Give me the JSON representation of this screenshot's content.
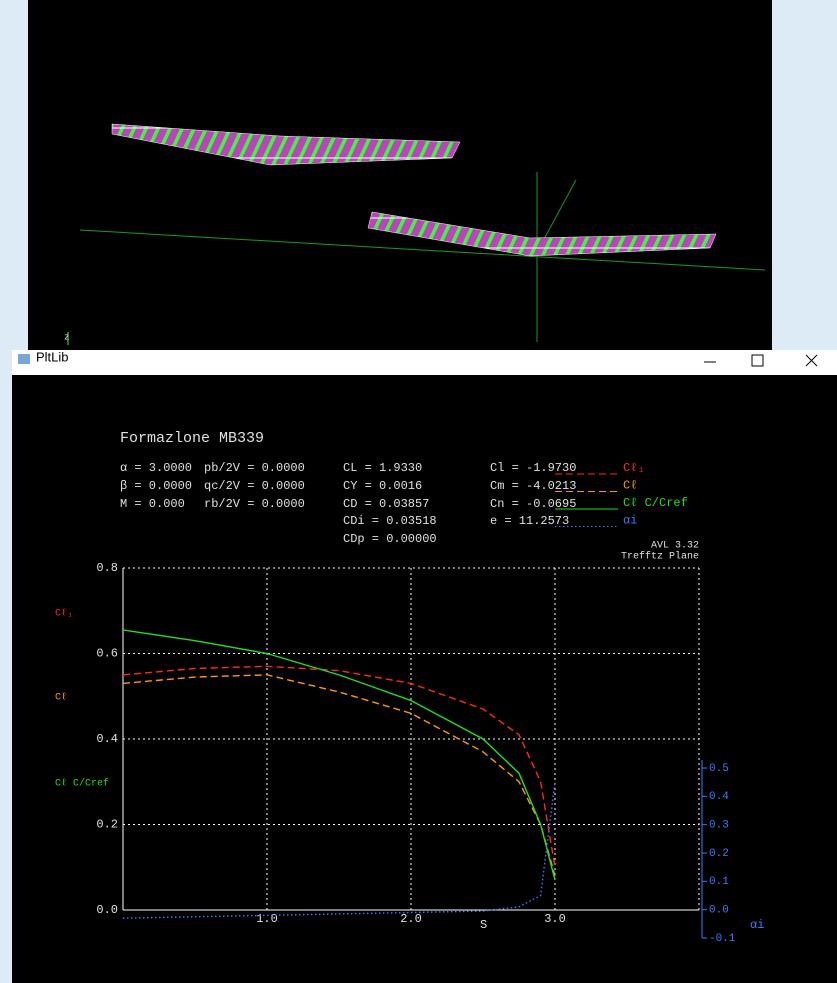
{
  "view_top": {
    "axis_label": "z"
  },
  "window": {
    "title": "PltLib"
  },
  "chart_data": {
    "type": "line",
    "title": "Formazlone MB339",
    "parameters": [
      [
        "α = 3.0000",
        "pb/2V = 0.0000",
        "CL = 1.9330",
        "Cl = -1.9730"
      ],
      [
        "β = 0.0000",
        "qc/2V = 0.0000",
        "CY = 0.0016",
        "Cm = -4.0213"
      ],
      [
        "M = 0.000",
        "rb/2V = 0.0000",
        "CD = 0.03857",
        "Cn = -0.0695"
      ],
      [
        "CDi = 0.03518",
        "e = 11.2573"
      ],
      [
        "CDp = 0.00000"
      ]
    ],
    "annotations": [
      "AVL 3.32",
      "Trefftz Plane"
    ],
    "xlabel": "S",
    "y2label": "αi",
    "x": [
      0,
      0.5,
      1.0,
      1.5,
      2.0,
      2.5,
      2.75,
      2.9,
      3.0
    ],
    "xlim": [
      0,
      4
    ],
    "xticks": [
      {
        "value": 1,
        "label": "1.0"
      },
      {
        "value": 2,
        "label": "2.0"
      },
      {
        "value": 3,
        "label": "3.0"
      }
    ],
    "ylim": [
      0,
      0.8
    ],
    "yticks": [
      {
        "value": 0,
        "label": "0.0"
      },
      0.2,
      0.4,
      0.6,
      0.8
    ],
    "y2lim": [
      -0.1,
      0.5
    ],
    "y2ticks": [
      -0.1,
      {
        "value": 0,
        "label": "0.0"
      },
      0.1,
      0.2,
      0.3,
      0.4,
      0.5
    ],
    "grid": true,
    "legend": "upper right",
    "series": [
      {
        "name": "Cℓ₁",
        "color": "#ff2a1a",
        "dash": "dashed",
        "values": [
          0.55,
          0.565,
          0.57,
          0.56,
          0.53,
          0.47,
          0.41,
          0.3,
          0.1
        ]
      },
      {
        "name": "Cℓ",
        "color": "#ff9900",
        "dash": "dashed",
        "values": [
          0.53,
          0.545,
          0.55,
          0.51,
          0.46,
          0.37,
          0.3,
          0.2,
          0.08
        ]
      },
      {
        "name": "Cℓ C/Cref",
        "color": "#22dd22",
        "dash": "solid",
        "values": [
          0.655,
          0.63,
          0.6,
          0.55,
          0.49,
          0.4,
          0.32,
          0.2,
          0.07
        ]
      },
      {
        "name": "αi",
        "color": "#3a7bff",
        "dash": "dotted",
        "axis": "y2",
        "values": [
          -0.03,
          -0.025,
          -0.02,
          -0.015,
          -0.01,
          -0.005,
          0.01,
          0.05,
          0.45
        ]
      }
    ]
  }
}
